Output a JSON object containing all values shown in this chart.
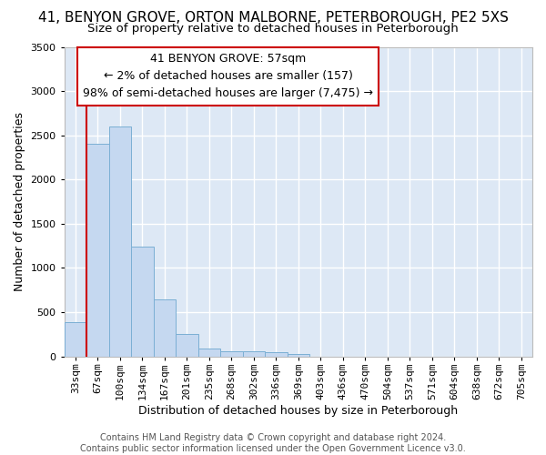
{
  "title": "41, BENYON GROVE, ORTON MALBORNE, PETERBOROUGH, PE2 5XS",
  "subtitle": "Size of property relative to detached houses in Peterborough",
  "xlabel": "Distribution of detached houses by size in Peterborough",
  "ylabel": "Number of detached properties",
  "categories": [
    "33sqm",
    "67sqm",
    "100sqm",
    "134sqm",
    "167sqm",
    "201sqm",
    "235sqm",
    "268sqm",
    "302sqm",
    "336sqm",
    "369sqm",
    "403sqm",
    "436sqm",
    "470sqm",
    "504sqm",
    "537sqm",
    "571sqm",
    "604sqm",
    "638sqm",
    "672sqm",
    "705sqm"
  ],
  "values": [
    390,
    2400,
    2600,
    1240,
    640,
    255,
    90,
    55,
    55,
    45,
    30,
    0,
    0,
    0,
    0,
    0,
    0,
    0,
    0,
    0,
    0
  ],
  "bar_color": "#c5d8f0",
  "bar_edge_color": "#7bafd4",
  "ylim_max": 3500,
  "yticks": [
    0,
    500,
    1000,
    1500,
    2000,
    2500,
    3000,
    3500
  ],
  "highlight_color": "#cc0000",
  "vline_x": 0.5,
  "annotation_line1": "41 BENYON GROVE: 57sqm",
  "annotation_line2": "← 2% of detached houses are smaller (157)",
  "annotation_line3": "98% of semi-detached houses are larger (7,475) →",
  "annotation_box_facecolor": "#ffffff",
  "annotation_box_edgecolor": "#cc0000",
  "footer_line1": "Contains HM Land Registry data © Crown copyright and database right 2024.",
  "footer_line2": "Contains public sector information licensed under the Open Government Licence v3.0.",
  "plot_bg_color": "#dde8f5",
  "fig_bg_color": "#ffffff",
  "grid_color": "#ffffff",
  "title_fontsize": 11,
  "subtitle_fontsize": 9.5,
  "ylabel_fontsize": 9,
  "xlabel_fontsize": 9,
  "tick_fontsize": 8,
  "annot_fontsize": 9,
  "footer_fontsize": 7
}
